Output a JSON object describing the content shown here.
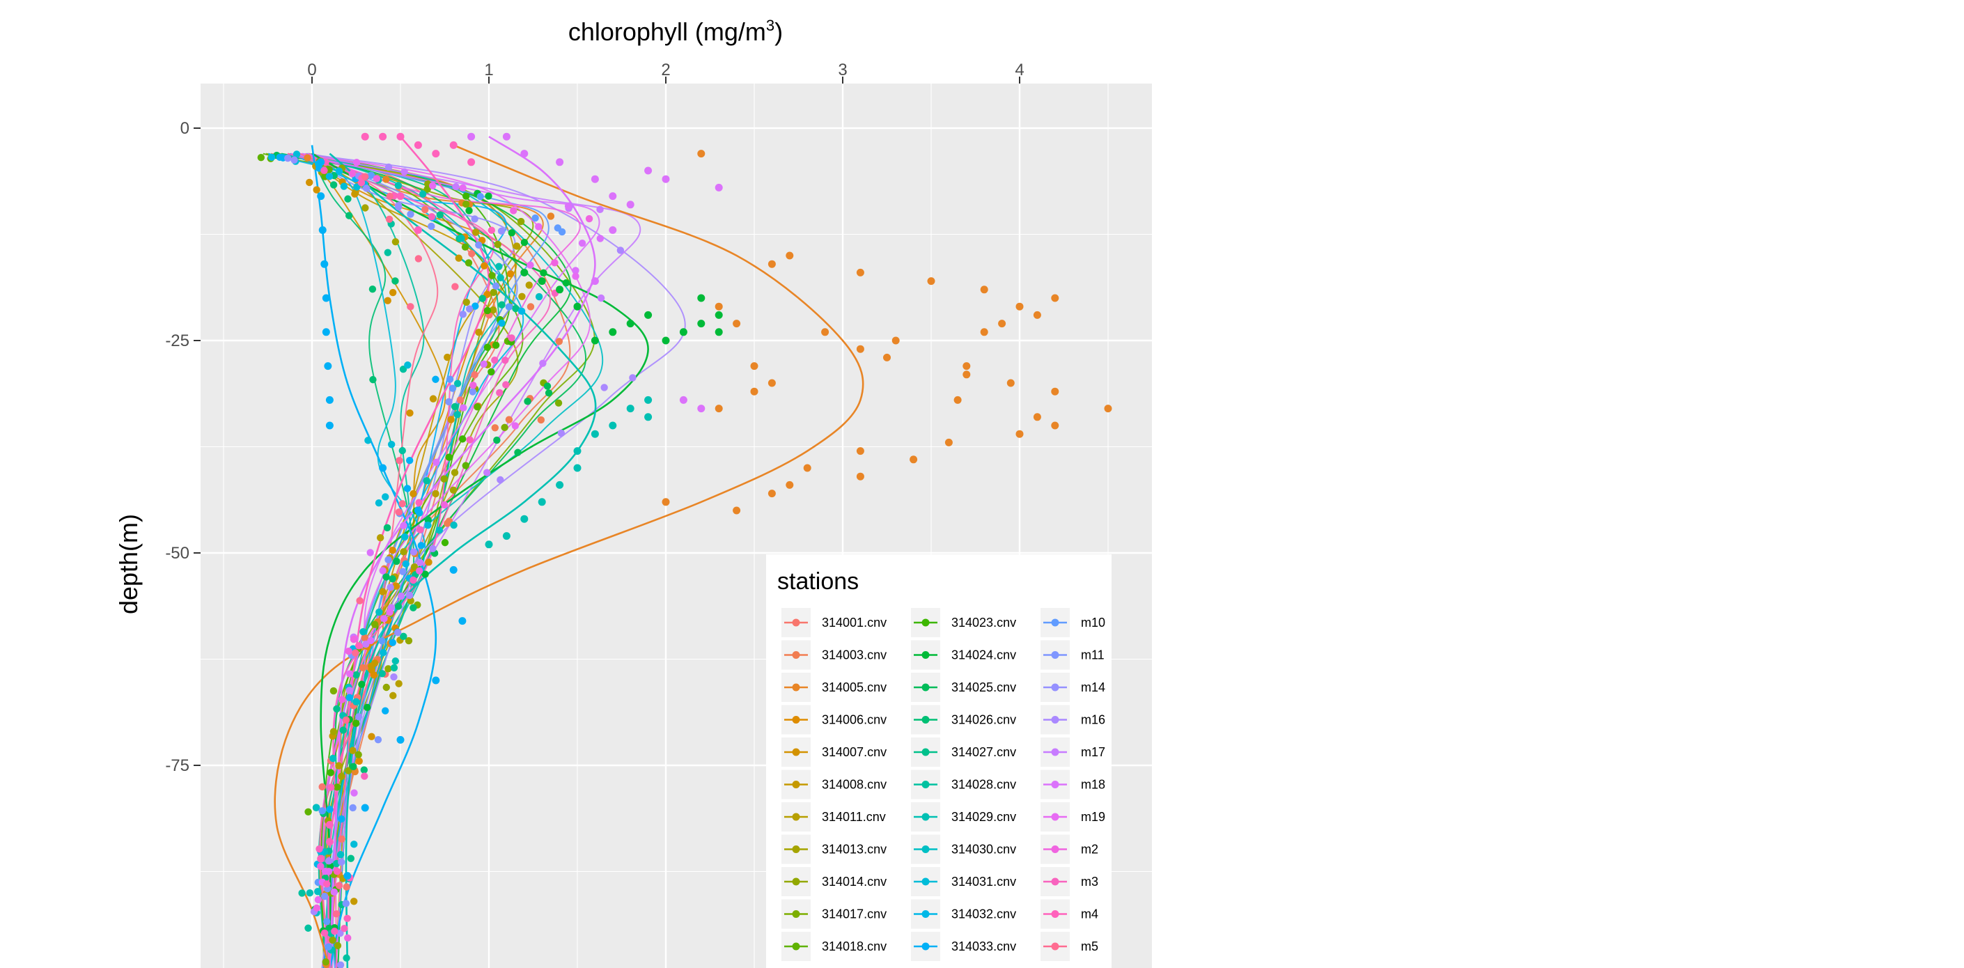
{
  "chart_data": {
    "type": "scatter",
    "title": "",
    "xlabel": "chlorophyll  (mg/m",
    "xlabel_sup": "3",
    "xlabel_close": ")",
    "ylabel": "depth(m)",
    "x_axis_position": "top",
    "xlim": [
      -0.5,
      4.8
    ],
    "ylim": [
      -99,
      5
    ],
    "x_ticks": [
      0,
      1,
      2,
      3,
      4
    ],
    "x_tick_labels": [
      "0",
      "1",
      "2",
      "3",
      "4"
    ],
    "y_ticks": [
      0,
      -25,
      -50,
      -75
    ],
    "y_tick_labels": [
      "0",
      "-25",
      "-50",
      "-75"
    ],
    "grid": true,
    "panel_background": "#ebebeb",
    "legend": {
      "title": "stations",
      "placement": "bottom-right inside panel",
      "columns": 3,
      "entries": [
        {
          "label": "314001.cnv",
          "color": "#F8766D"
        },
        {
          "label": "314003.cnv",
          "color": "#F17D51"
        },
        {
          "label": "314005.cnv",
          "color": "#E88526"
        },
        {
          "label": "314006.cnv",
          "color": "#DE8C00"
        },
        {
          "label": "314007.cnv",
          "color": "#D39200"
        },
        {
          "label": "314008.cnv",
          "color": "#C59900"
        },
        {
          "label": "314011.cnv",
          "color": "#B79F00"
        },
        {
          "label": "314013.cnv",
          "color": "#A5A400"
        },
        {
          "label": "314014.cnv",
          "color": "#92A800"
        },
        {
          "label": "314017.cnv",
          "color": "#7CAE00"
        },
        {
          "label": "314018.cnv",
          "color": "#5FB200"
        },
        {
          "label": "314023.cnv",
          "color": "#3DB600"
        },
        {
          "label": "314024.cnv",
          "color": "#00BA38"
        },
        {
          "label": "314025.cnv",
          "color": "#00BC59"
        },
        {
          "label": "314026.cnv",
          "color": "#00BF74"
        },
        {
          "label": "314027.cnv",
          "color": "#00C08B"
        },
        {
          "label": "314028.cnv",
          "color": "#00C1A0"
        },
        {
          "label": "314029.cnv",
          "color": "#00C0B3"
        },
        {
          "label": "314030.cnv",
          "color": "#00BFC4"
        },
        {
          "label": "314031.cnv",
          "color": "#00BCD8"
        },
        {
          "label": "314032.cnv",
          "color": "#00B8E7"
        },
        {
          "label": "314033.cnv",
          "color": "#00B0F6"
        },
        {
          "label": "m10",
          "color": "#619CFF"
        },
        {
          "label": "m11",
          "color": "#7F96FF"
        },
        {
          "label": "m14",
          "color": "#9590FF"
        },
        {
          "label": "m16",
          "color": "#AA88FF"
        },
        {
          "label": "m17",
          "color": "#C77CFF"
        },
        {
          "label": "m18",
          "color": "#DB72FB"
        },
        {
          "label": "m19",
          "color": "#E76BF3"
        },
        {
          "label": "m2",
          "color": "#F064E0"
        },
        {
          "label": "m3",
          "color": "#F863BE"
        },
        {
          "label": "m4",
          "color": "#FF62BC"
        },
        {
          "label": "m5",
          "color": "#FF6C91"
        }
      ]
    },
    "series": [
      {
        "label": "314005.cnv",
        "color": "#E88526",
        "style": "deep-maximum",
        "profile": [
          [
            0.8,
            -2
          ],
          [
            1.5,
            -8
          ],
          [
            2.4,
            -15
          ],
          [
            3.0,
            -25
          ],
          [
            3.1,
            -32
          ],
          [
            2.8,
            -38
          ],
          [
            2.2,
            -44
          ],
          [
            1.2,
            -52
          ],
          [
            0.6,
            -58
          ],
          [
            0.1,
            -64
          ],
          [
            -0.15,
            -72
          ],
          [
            -0.2,
            -82
          ],
          [
            0.0,
            -92
          ],
          [
            0.1,
            -99
          ]
        ],
        "points": [
          [
            2.6,
            -16
          ],
          [
            2.7,
            -15
          ],
          [
            3.1,
            -17
          ],
          [
            3.5,
            -18
          ],
          [
            3.8,
            -19
          ],
          [
            4.0,
            -21
          ],
          [
            4.1,
            -22
          ],
          [
            4.2,
            -20
          ],
          [
            3.9,
            -23
          ],
          [
            3.8,
            -24
          ],
          [
            3.3,
            -25
          ],
          [
            2.9,
            -24
          ],
          [
            3.1,
            -26
          ],
          [
            3.25,
            -27
          ],
          [
            3.7,
            -28
          ],
          [
            3.7,
            -29
          ],
          [
            3.95,
            -30
          ],
          [
            4.2,
            -31
          ],
          [
            3.65,
            -32
          ],
          [
            4.5,
            -33
          ],
          [
            4.1,
            -34
          ],
          [
            4.2,
            -35
          ],
          [
            4.0,
            -36
          ],
          [
            3.6,
            -37
          ],
          [
            3.1,
            -38
          ],
          [
            3.4,
            -39
          ],
          [
            2.8,
            -40
          ],
          [
            3.1,
            -41
          ],
          [
            2.7,
            -42
          ],
          [
            2.6,
            -43
          ],
          [
            2.0,
            -44
          ],
          [
            2.4,
            -45
          ],
          [
            2.3,
            -33
          ],
          [
            2.5,
            -31
          ],
          [
            2.6,
            -30
          ],
          [
            2.5,
            -28
          ],
          [
            2.4,
            -23
          ],
          [
            2.3,
            -21
          ],
          [
            2.2,
            -3
          ]
        ]
      },
      {
        "label": "314024.cnv",
        "color": "#00BA38",
        "style": "mid-maximum",
        "profile": [
          [
            0.0,
            -3
          ],
          [
            0.6,
            -10
          ],
          [
            1.2,
            -16
          ],
          [
            1.7,
            -21
          ],
          [
            1.9,
            -26
          ],
          [
            1.7,
            -32
          ],
          [
            1.2,
            -38
          ],
          [
            0.7,
            -45
          ],
          [
            0.3,
            -52
          ],
          [
            0.1,
            -60
          ],
          [
            0.05,
            -70
          ],
          [
            0.1,
            -85
          ],
          [
            0.1,
            -99
          ]
        ],
        "points": [
          [
            2.2,
            -20
          ],
          [
            2.3,
            -22
          ],
          [
            2.2,
            -23
          ],
          [
            2.3,
            -24
          ],
          [
            2.1,
            -24
          ],
          [
            2.0,
            -25
          ],
          [
            1.9,
            -22
          ],
          [
            1.8,
            -23
          ],
          [
            1.7,
            -24
          ],
          [
            1.6,
            -25
          ],
          [
            1.5,
            -21
          ],
          [
            1.4,
            -19
          ],
          [
            1.3,
            -18
          ],
          [
            1.2,
            -17
          ]
        ]
      },
      {
        "label": "314029.cnv",
        "color": "#00C0B3",
        "style": "mid-maximum",
        "profile": [
          [
            0.1,
            -3
          ],
          [
            0.5,
            -10
          ],
          [
            1.0,
            -18
          ],
          [
            1.4,
            -26
          ],
          [
            1.6,
            -32
          ],
          [
            1.5,
            -38
          ],
          [
            1.2,
            -44
          ],
          [
            0.8,
            -50
          ],
          [
            0.5,
            -56
          ],
          [
            0.3,
            -65
          ],
          [
            0.2,
            -80
          ],
          [
            0.2,
            -99
          ]
        ],
        "points": [
          [
            1.9,
            -32
          ],
          [
            1.9,
            -34
          ],
          [
            1.8,
            -33
          ],
          [
            1.7,
            -35
          ],
          [
            1.6,
            -36
          ],
          [
            1.5,
            -38
          ],
          [
            1.5,
            -40
          ],
          [
            1.4,
            -42
          ],
          [
            1.3,
            -44
          ],
          [
            1.2,
            -46
          ],
          [
            1.1,
            -48
          ],
          [
            1.0,
            -49
          ]
        ]
      },
      {
        "label": "314033.cnv",
        "color": "#00B0F6",
        "style": "deep-near-zero",
        "profile": [
          [
            0.0,
            -2
          ],
          [
            0.05,
            -10
          ],
          [
            0.1,
            -20
          ],
          [
            0.2,
            -30
          ],
          [
            0.4,
            -40
          ],
          [
            0.6,
            -50
          ],
          [
            0.7,
            -60
          ],
          [
            0.6,
            -70
          ],
          [
            0.4,
            -80
          ],
          [
            0.2,
            -90
          ],
          [
            0.1,
            -99
          ]
        ],
        "points": [
          [
            0.05,
            -4
          ],
          [
            0.05,
            -8
          ],
          [
            0.06,
            -12
          ],
          [
            0.07,
            -16
          ],
          [
            0.08,
            -20
          ],
          [
            0.08,
            -24
          ],
          [
            0.09,
            -28
          ],
          [
            0.1,
            -32
          ],
          [
            0.1,
            -35
          ],
          [
            0.4,
            -40
          ],
          [
            0.6,
            -45
          ],
          [
            0.8,
            -52
          ],
          [
            0.85,
            -58
          ],
          [
            0.7,
            -65
          ],
          [
            0.5,
            -72
          ],
          [
            0.3,
            -80
          ],
          [
            0.2,
            -88
          ]
        ]
      },
      {
        "label": "m18",
        "color": "#DB72FB",
        "style": "surface-maximum",
        "profile": [
          [
            1.0,
            -1
          ],
          [
            1.3,
            -5
          ],
          [
            1.5,
            -10
          ],
          [
            1.6,
            -16
          ],
          [
            1.5,
            -22
          ],
          [
            1.3,
            -28
          ],
          [
            1.0,
            -35
          ],
          [
            0.7,
            -42
          ],
          [
            0.4,
            -50
          ],
          [
            0.2,
            -60
          ],
          [
            0.15,
            -75
          ],
          [
            0.1,
            -99
          ]
        ],
        "points": [
          [
            0.9,
            -1
          ],
          [
            1.1,
            -1
          ],
          [
            1.2,
            -3
          ],
          [
            1.4,
            -4
          ],
          [
            1.6,
            -6
          ],
          [
            1.7,
            -8
          ],
          [
            1.8,
            -9
          ],
          [
            1.9,
            -5
          ],
          [
            2.0,
            -6
          ],
          [
            2.3,
            -7
          ],
          [
            1.7,
            -12
          ],
          [
            1.6,
            -18
          ],
          [
            2.1,
            -32
          ],
          [
            2.2,
            -33
          ]
        ]
      },
      {
        "label": "m4",
        "color": "#FF62BC",
        "style": "surface-maximum",
        "profile": [
          [
            0.5,
            -1
          ],
          [
            0.7,
            -6
          ],
          [
            0.9,
            -12
          ],
          [
            1.0,
            -18
          ],
          [
            0.9,
            -25
          ],
          [
            0.7,
            -33
          ],
          [
            0.5,
            -42
          ],
          [
            0.3,
            -55
          ],
          [
            0.2,
            -70
          ],
          [
            0.1,
            -85
          ],
          [
            0.1,
            -99
          ]
        ],
        "points": [
          [
            0.3,
            -1
          ],
          [
            0.4,
            -1
          ],
          [
            0.5,
            -1
          ],
          [
            0.6,
            -2
          ],
          [
            0.7,
            -3
          ],
          [
            0.8,
            -2
          ],
          [
            0.9,
            -4
          ],
          [
            0.5,
            -8
          ],
          [
            0.6,
            -12
          ],
          [
            0.1,
            -82
          ],
          [
            0.1,
            -84
          ],
          [
            0.05,
            -86
          ]
        ]
      }
    ]
  }
}
